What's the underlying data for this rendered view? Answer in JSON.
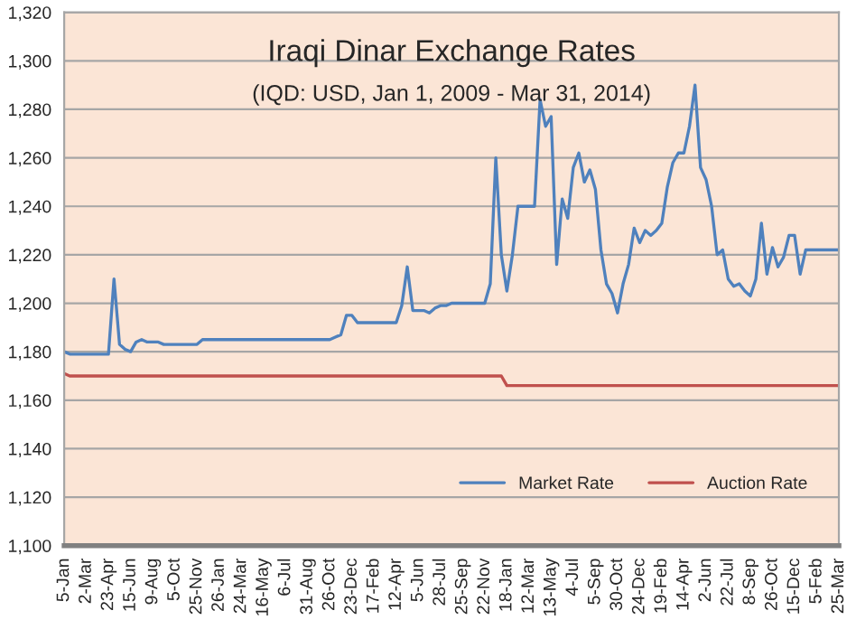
{
  "chart_data": {
    "type": "line",
    "title": "Iraqi Dinar Exchange Rates",
    "subtitle": "(IQD: USD, Jan 1, 2009 - Mar 31, 2014)",
    "categories": [
      "5-Jan",
      null,
      null,
      null,
      "2-Mar",
      null,
      null,
      null,
      "23-Apr",
      null,
      null,
      null,
      "15-Jun",
      null,
      null,
      null,
      "9-Aug",
      null,
      null,
      null,
      "5-Oct",
      null,
      null,
      null,
      "25-Nov",
      null,
      null,
      null,
      "26-Jan",
      null,
      null,
      null,
      "24-Mar",
      null,
      null,
      null,
      "16-May",
      null,
      null,
      null,
      "6-Jul",
      null,
      null,
      null,
      "31-Aug",
      null,
      null,
      null,
      "26-Oct",
      null,
      null,
      null,
      "23-Dec",
      null,
      null,
      null,
      "17-Feb",
      null,
      null,
      null,
      "12-Apr",
      null,
      null,
      null,
      "5-Jun",
      null,
      null,
      null,
      "28-Jul",
      null,
      null,
      null,
      "25-Sep",
      null,
      null,
      null,
      "22-Nov",
      null,
      null,
      null,
      "18-Jan",
      null,
      null,
      null,
      "12-Mar",
      null,
      null,
      null,
      "13-May",
      null,
      null,
      null,
      "4-Jul",
      null,
      null,
      null,
      "5-Sep",
      null,
      null,
      null,
      "30-Oct",
      null,
      null,
      null,
      "24-Dec",
      null,
      null,
      null,
      "19-Feb",
      null,
      null,
      null,
      "14-Apr",
      null,
      null,
      null,
      "2-Jun",
      null,
      null,
      null,
      "22-Jul",
      null,
      null,
      null,
      "8-Sep",
      null,
      null,
      null,
      "26-Oct",
      null,
      null,
      null,
      "15-Dec",
      null,
      null,
      null,
      "5-Feb",
      null,
      null,
      null,
      "25-Mar"
    ],
    "series": [
      {
        "name": "Market Rate",
        "color": "#4f81bd",
        "values": [
          1180,
          1179,
          1179,
          1179,
          1179,
          1179,
          1179,
          1179,
          1179,
          1210,
          1183,
          1181,
          1180,
          1184,
          1185,
          1184,
          1184,
          1184,
          1183,
          1183,
          1183,
          1183,
          1183,
          1183,
          1183,
          1185,
          1185,
          1185,
          1185,
          1185,
          1185,
          1185,
          1185,
          1185,
          1185,
          1185,
          1185,
          1185,
          1185,
          1185,
          1185,
          1185,
          1185,
          1185,
          1185,
          1185,
          1185,
          1185,
          1185,
          1186,
          1187,
          1195,
          1195,
          1192,
          1192,
          1192,
          1192,
          1192,
          1192,
          1192,
          1192,
          1199,
          1215,
          1197,
          1197,
          1197,
          1196,
          1198,
          1199,
          1199,
          1200,
          1200,
          1200,
          1200,
          1200,
          1200,
          1200,
          1208,
          1260,
          1220,
          1205,
          1220,
          1240,
          1240,
          1240,
          1240,
          1284,
          1273,
          1277,
          1216,
          1243,
          1235,
          1256,
          1262,
          1250,
          1255,
          1247,
          1222,
          1208,
          1204,
          1196,
          1208,
          1216,
          1231,
          1225,
          1230,
          1228,
          1230,
          1233,
          1248,
          1258,
          1262,
          1262,
          1273,
          1290,
          1256,
          1251,
          1240,
          1220,
          1222,
          1210,
          1207,
          1208,
          1205,
          1203,
          1210,
          1233,
          1212,
          1223,
          1215,
          1219,
          1228,
          1228,
          1212,
          1222,
          1222,
          1222,
          1222,
          1222,
          1222,
          1222
        ]
      },
      {
        "name": "Auction Rate",
        "color": "#c0504d",
        "values": [
          1171,
          1170,
          1170,
          1170,
          1170,
          1170,
          1170,
          1170,
          1170,
          1170,
          1170,
          1170,
          1170,
          1170,
          1170,
          1170,
          1170,
          1170,
          1170,
          1170,
          1170,
          1170,
          1170,
          1170,
          1170,
          1170,
          1170,
          1170,
          1170,
          1170,
          1170,
          1170,
          1170,
          1170,
          1170,
          1170,
          1170,
          1170,
          1170,
          1170,
          1170,
          1170,
          1170,
          1170,
          1170,
          1170,
          1170,
          1170,
          1170,
          1170,
          1170,
          1170,
          1170,
          1170,
          1170,
          1170,
          1170,
          1170,
          1170,
          1170,
          1170,
          1170,
          1170,
          1170,
          1170,
          1170,
          1170,
          1170,
          1170,
          1170,
          1170,
          1170,
          1170,
          1170,
          1170,
          1170,
          1170,
          1170,
          1170,
          1170,
          1166,
          1166,
          1166,
          1166,
          1166,
          1166,
          1166,
          1166,
          1166,
          1166,
          1166,
          1166,
          1166,
          1166,
          1166,
          1166,
          1166,
          1166,
          1166,
          1166,
          1166,
          1166,
          1166,
          1166,
          1166,
          1166,
          1166,
          1166,
          1166,
          1166,
          1166,
          1166,
          1166,
          1166,
          1166,
          1166,
          1166,
          1166,
          1166,
          1166,
          1166,
          1166,
          1166,
          1166,
          1166,
          1166,
          1166,
          1166,
          1166,
          1166,
          1166,
          1166,
          1166,
          1166,
          1166,
          1166,
          1166,
          1166,
          1166,
          1166,
          1166
        ]
      }
    ],
    "ylim": [
      1100,
      1320
    ],
    "yticks": [
      {
        "value": 1100,
        "label": "1,100"
      },
      {
        "value": 1120,
        "label": "1,120"
      },
      {
        "value": 1140,
        "label": "1,140"
      },
      {
        "value": 1160,
        "label": "1,160"
      },
      {
        "value": 1180,
        "label": "1,180"
      },
      {
        "value": 1200,
        "label": "1,200"
      },
      {
        "value": 1220,
        "label": "1,220"
      },
      {
        "value": 1240,
        "label": "1,240"
      },
      {
        "value": 1260,
        "label": "1,260"
      },
      {
        "value": 1280,
        "label": "1,280"
      },
      {
        "value": 1300,
        "label": "1,300"
      },
      {
        "value": 1320,
        "label": "1,320"
      }
    ],
    "grid": "y",
    "legend": "bottom right",
    "marker": "none",
    "line_style": "solid"
  }
}
